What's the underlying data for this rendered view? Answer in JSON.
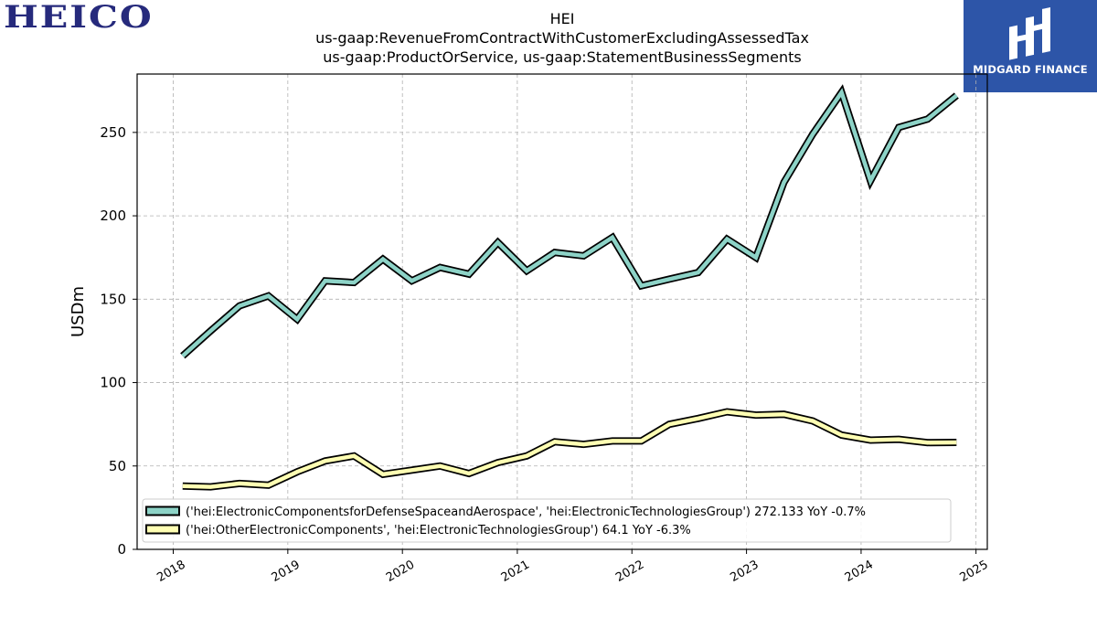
{
  "header": {
    "left_logo_text": "HEICO",
    "right_logo_text": "MIDGARD FINANCE",
    "right_logo_icon": "midgard-m-logo-icon"
  },
  "colors": {
    "series_1": "#8dd3c7",
    "series_2": "#ffffb3",
    "outline": "#000000",
    "grid": "#b0b0b0",
    "brand_blue": "#2d55a8",
    "heico_navy": "#262a7c"
  },
  "chart_data": {
    "type": "line",
    "title": "HEI",
    "subtitle_1": "us-gaap:RevenueFromContractWithCustomerExcludingAssessedTax",
    "subtitle_2": "us-gaap:ProductOrService, us-gaap:StatementBusinessSegments",
    "xlabel": "",
    "ylabel": "USDm",
    "ylim": [
      0,
      285
    ],
    "yticks": [
      0,
      50,
      100,
      150,
      200,
      250
    ],
    "xticks": [
      "2018",
      "2019",
      "2020",
      "2021",
      "2022",
      "2023",
      "2024",
      "2025"
    ],
    "xlim": [
      "2017-09-08",
      "2025-02-06"
    ],
    "grid": true,
    "legend_position": "lower-left",
    "x": [
      "2018-01-31",
      "2018-04-30",
      "2018-07-31",
      "2018-10-31",
      "2019-01-31",
      "2019-04-30",
      "2019-07-31",
      "2019-10-31",
      "2020-01-31",
      "2020-04-30",
      "2020-07-31",
      "2020-10-31",
      "2021-01-31",
      "2021-04-30",
      "2021-07-31",
      "2021-10-31",
      "2022-01-31",
      "2022-04-30",
      "2022-07-31",
      "2022-10-31",
      "2023-01-31",
      "2023-04-30",
      "2023-07-31",
      "2023-10-31",
      "2024-01-31",
      "2024-04-30",
      "2024-07-31",
      "2024-10-31"
    ],
    "series": [
      {
        "name": "('hei:ElectronicComponentsforDefenseSpaceandAerospace', 'hei:ElectronicTechnologiesGroup') 272.133 YoY -0.7%",
        "values": [
          116,
          131,
          146,
          152,
          138,
          161,
          160,
          174,
          161,
          169,
          165,
          184,
          167,
          178,
          176,
          187,
          158,
          162,
          166,
          186,
          175,
          220,
          249,
          274,
          221,
          253,
          258,
          272.133
        ]
      },
      {
        "name": "('hei:OtherElectronicComponents', 'hei:ElectronicTechnologiesGroup') 64.1 YoY -6.3%",
        "values": [
          38,
          37.5,
          39.5,
          38.5,
          46.5,
          53,
          56,
          45,
          47.5,
          50,
          45.5,
          52,
          56,
          64.5,
          63,
          65,
          65,
          75,
          78.5,
          82.5,
          80.5,
          81,
          77,
          68.5,
          65.5,
          66,
          64,
          64.1
        ]
      }
    ]
  }
}
